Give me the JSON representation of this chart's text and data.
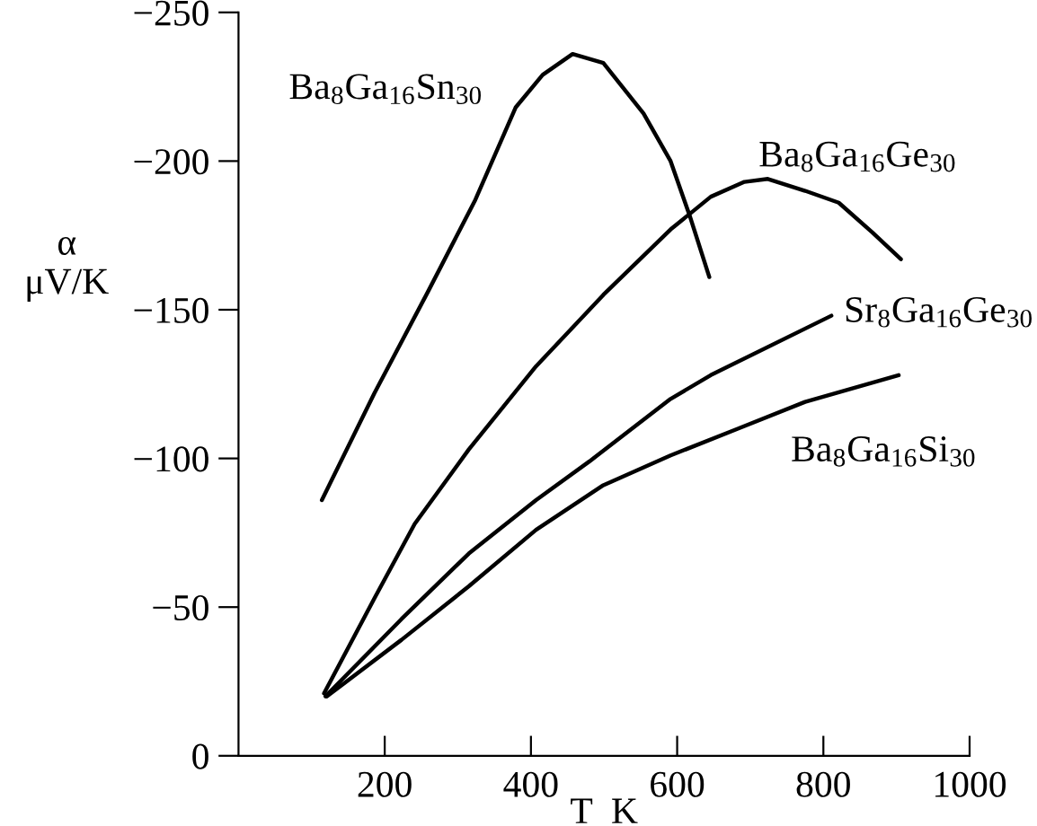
{
  "chart_data": {
    "type": "line",
    "xlabel": "T  K",
    "ylabel": "α\nμV/K",
    "xlim": [
      0,
      1000
    ],
    "xticks": [
      200,
      400,
      600,
      800,
      1000
    ],
    "ylim": [
      0,
      -250
    ],
    "yticks": [
      0,
      {
        "value": -50,
        "label": "−50"
      },
      {
        "value": -100,
        "label": "−100"
      },
      {
        "value": -150,
        "label": "−150"
      },
      {
        "value": -200,
        "label": "−200"
      },
      {
        "value": -250,
        "label": "−250"
      }
    ],
    "grid": false,
    "legend": false,
    "marker": "none",
    "line_style": "solid",
    "series": [
      {
        "name": "Ba$_{8}$Ga$_{16}$Sn$_{30}$",
        "color": "#000000",
        "x": [
          114,
          186,
          259,
          324,
          379,
          416,
          457,
          499,
          554,
          591,
          618,
          644
        ],
        "values": [
          -86,
          -122,
          -156,
          -187,
          -218,
          -229,
          -236,
          -233,
          -216,
          -200,
          -181,
          -161
        ]
      },
      {
        "name": "Ba$_{8}$Ga$_{16}$Ge$_{30}$",
        "color": "#000000",
        "x": [
          117,
          186,
          241,
          315,
          407,
          499,
          591,
          646,
          692,
          724,
          775,
          821,
          867,
          906
        ],
        "values": [
          -21,
          -53,
          -78,
          -103,
          -131,
          -155,
          -177,
          -188,
          -193,
          -194,
          -190,
          -186,
          -176,
          -167
        ]
      },
      {
        "name": "Sr$_{8}$Ga$_{16}$Ge$_{30}$",
        "color": "#000000",
        "x": [
          119,
          223,
          315,
          407,
          480,
          591,
          646,
          811
        ],
        "values": [
          -20,
          -46,
          -68,
          -86,
          -99,
          -120,
          -128,
          -148
        ]
      },
      {
        "name": "Ba$_{8}$Ga$_{16}$Si$_{30}$",
        "color": "#000000",
        "x": [
          121,
          223,
          315,
          407,
          499,
          591,
          683,
          775,
          903
        ],
        "values": [
          -20,
          -39,
          -57,
          -76,
          -91,
          -101,
          -110,
          -119,
          -128
        ]
      }
    ]
  }
}
